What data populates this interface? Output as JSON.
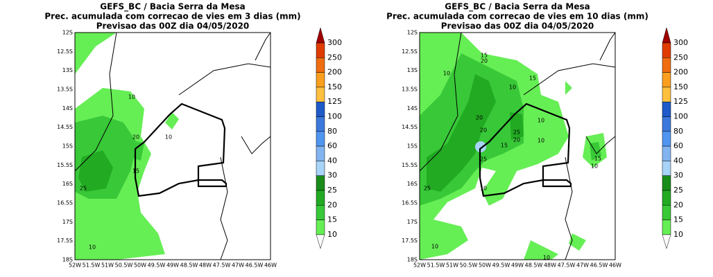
{
  "panels": [
    {
      "title": [
        "GEFS_BC / Bacia Serra da Mesa",
        "Prec. acumulada com correcao de vies em 3 dias (mm)",
        "Previsao das 00Z dia 04/05/2020"
      ],
      "contour_labels": [
        "10",
        "20",
        "10",
        "15",
        "25",
        "10"
      ]
    },
    {
      "title": [
        "GEFS_BC / Bacia Serra da Mesa",
        "Prec. acumulada com correcao de vies em 10 dias (mm)",
        "Previsao das 00Z dia 04/05/2020"
      ],
      "contour_labels": [
        "15",
        "20",
        "10",
        "10",
        "15",
        "20",
        "20",
        "25",
        "20",
        "10",
        "10",
        "15",
        "25",
        "15",
        "10",
        "10",
        "25",
        "10",
        "10"
      ]
    }
  ],
  "lat_labels": [
    "12S",
    "12.5S",
    "13S",
    "13.5S",
    "14S",
    "14.5S",
    "15S",
    "15.5S",
    "16S",
    "16.5S",
    "17S",
    "17.5S",
    "18S"
  ],
  "lon_labels": [
    "52W",
    "51.5W",
    "51W",
    "50.5W",
    "50W",
    "49.5W",
    "49W",
    "48.5W",
    "48W",
    "47.5W",
    "47W",
    "46.5W",
    "46W"
  ],
  "colorbar": {
    "labels": [
      "300",
      "250",
      "200",
      "150",
      "125",
      "100",
      "80",
      "60",
      "40",
      "30",
      "25",
      "20",
      "15",
      "10"
    ],
    "colors": [
      "#a00000",
      "#e03c00",
      "#f06e10",
      "#fa9f1e",
      "#ffc040",
      "#1e5ac8",
      "#3c78dc",
      "#5096f0",
      "#82b4f0",
      "#a8d4fa",
      "#1a8c1a",
      "#22aa22",
      "#38c838",
      "#66ee55"
    ]
  }
}
